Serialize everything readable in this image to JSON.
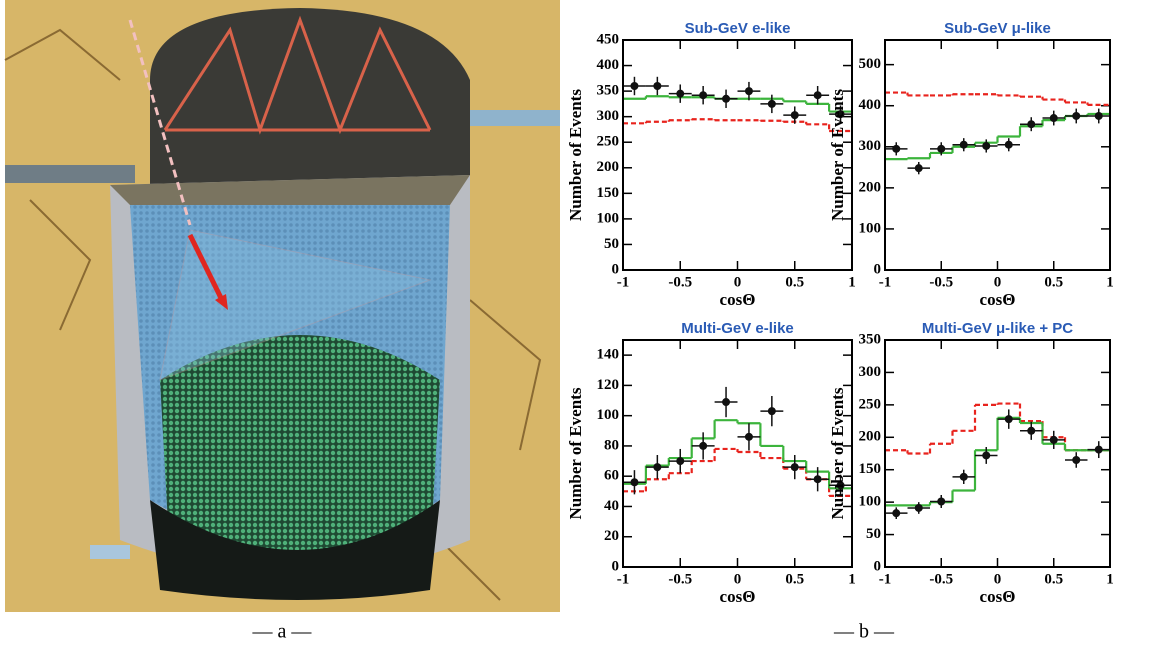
{
  "figure": {
    "captions": [
      "— a —",
      "— b —"
    ]
  },
  "chart_data": [
    {
      "type": "histogram",
      "title": "Sub-GeV e-like",
      "xlabel": "cosΘ",
      "ylabel": "Number of Events",
      "bins": [
        -1,
        -0.8,
        -0.6,
        -0.4,
        -0.2,
        0,
        0.2,
        0.4,
        0.6,
        0.8,
        1
      ],
      "xlim": [
        -1,
        1
      ],
      "xticks": [
        -1,
        -0.5,
        0,
        0.5,
        1
      ],
      "ylim": [
        0,
        450
      ],
      "yticks": [
        0,
        50,
        100,
        150,
        200,
        250,
        300,
        350,
        400,
        450
      ],
      "series": [
        {
          "style": "step",
          "dashed": true,
          "color": "#e8231d",
          "values": [
            287,
            290,
            293,
            295,
            293,
            293,
            292,
            290,
            285,
            272
          ]
        },
        {
          "style": "step",
          "dashed": false,
          "color": "#3cb43c",
          "values": [
            335,
            340,
            338,
            338,
            335,
            335,
            335,
            330,
            325,
            310
          ]
        },
        {
          "style": "points",
          "color": "#111111",
          "values": [
            360,
            360,
            345,
            342,
            335,
            350,
            325,
            303,
            342,
            305
          ],
          "errors": [
            18,
            18,
            18,
            18,
            18,
            18,
            18,
            17,
            18,
            17
          ]
        }
      ]
    },
    {
      "type": "histogram",
      "title": "Sub-GeV μ-like",
      "xlabel": "cosΘ",
      "ylabel": "Number of Events",
      "bins": [
        -1,
        -0.8,
        -0.6,
        -0.4,
        -0.2,
        0,
        0.2,
        0.4,
        0.6,
        0.8,
        1
      ],
      "xlim": [
        -1,
        1
      ],
      "xticks": [
        -1,
        -0.5,
        0,
        0.5,
        1
      ],
      "ylim": [
        0,
        560
      ],
      "yticks": [
        0,
        100,
        200,
        300,
        400,
        500
      ],
      "series": [
        {
          "style": "step",
          "dashed": true,
          "color": "#e8231d",
          "values": [
            432,
            425,
            425,
            428,
            428,
            425,
            422,
            415,
            408,
            402
          ]
        },
        {
          "style": "step",
          "dashed": false,
          "color": "#3cb43c",
          "values": [
            270,
            272,
            285,
            300,
            310,
            325,
            350,
            365,
            375,
            380
          ]
        },
        {
          "style": "points",
          "color": "#111111",
          "values": [
            295,
            248,
            295,
            305,
            302,
            305,
            355,
            370,
            375,
            375
          ],
          "errors": [
            16,
            15,
            16,
            16,
            16,
            16,
            17,
            18,
            18,
            18
          ]
        }
      ]
    },
    {
      "type": "histogram",
      "title": "Multi-GeV e-like",
      "xlabel": "cosΘ",
      "ylabel": "Number of Events",
      "bins": [
        -1,
        -0.8,
        -0.6,
        -0.4,
        -0.2,
        0,
        0.2,
        0.4,
        0.6,
        0.8,
        1
      ],
      "xlim": [
        -1,
        1
      ],
      "xticks": [
        -1,
        -0.5,
        0,
        0.5,
        1
      ],
      "ylim": [
        0,
        150
      ],
      "yticks": [
        0,
        20,
        40,
        60,
        80,
        100,
        120,
        140
      ],
      "series": [
        {
          "style": "step",
          "dashed": true,
          "color": "#e8231d",
          "values": [
            50,
            58,
            62,
            70,
            78,
            76,
            72,
            65,
            58,
            47
          ]
        },
        {
          "style": "step",
          "dashed": false,
          "color": "#3cb43c",
          "values": [
            55,
            67,
            72,
            85,
            97,
            95,
            80,
            70,
            63,
            52
          ]
        },
        {
          "style": "points",
          "color": "#111111",
          "values": [
            56,
            66,
            70,
            80,
            109,
            86,
            103,
            66,
            58,
            54
          ],
          "errors": [
            8,
            8,
            8,
            9,
            10,
            9,
            10,
            8,
            8,
            7
          ]
        }
      ]
    },
    {
      "type": "histogram",
      "title": "Multi-GeV μ-like + PC",
      "xlabel": "cosΘ",
      "ylabel": "Number of Events",
      "bins": [
        -1,
        -0.8,
        -0.6,
        -0.4,
        -0.2,
        0,
        0.2,
        0.4,
        0.6,
        0.8,
        1
      ],
      "xlim": [
        -1,
        1
      ],
      "xticks": [
        -1,
        -0.5,
        0,
        0.5,
        1
      ],
      "ylim": [
        0,
        350
      ],
      "yticks": [
        0,
        50,
        100,
        150,
        200,
        250,
        300,
        350
      ],
      "series": [
        {
          "style": "step",
          "dashed": true,
          "color": "#e8231d",
          "values": [
            180,
            175,
            190,
            210,
            250,
            252,
            225,
            200,
            180,
            180
          ]
        },
        {
          "style": "step",
          "dashed": false,
          "color": "#3cb43c",
          "values": [
            95,
            95,
            100,
            118,
            180,
            230,
            222,
            190,
            180,
            180
          ]
        },
        {
          "style": "points",
          "color": "#111111",
          "values": [
            83,
            91,
            101,
            139,
            172,
            228,
            210,
            196,
            165,
            181
          ],
          "errors": [
            9,
            9,
            10,
            11,
            13,
            15,
            14,
            14,
            12,
            13
          ]
        }
      ]
    }
  ]
}
